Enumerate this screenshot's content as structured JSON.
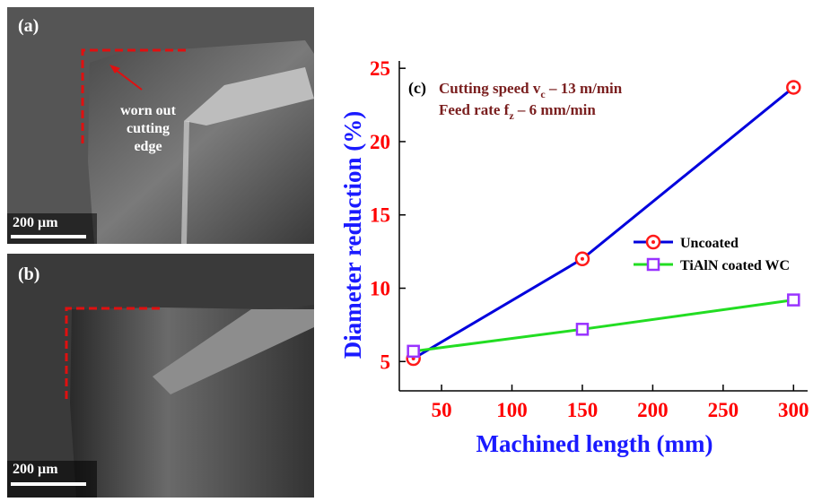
{
  "panels": [
    {
      "label": "(a)",
      "scale_bar": "200 µm",
      "annotation": [
        "worn out",
        "cutting",
        "edge"
      ]
    },
    {
      "label": "(b)",
      "scale_bar": "200 µm"
    }
  ],
  "chart_data": {
    "type": "line",
    "panel_label": "(c)",
    "annotation": [
      {
        "text": "Cutting speed v",
        "sub": "c",
        "rest": " – 13 m/min"
      },
      {
        "text": "Feed rate f",
        "sub": "z",
        "rest": " – 6 mm/min"
      }
    ],
    "x_label": "Machined length (mm)",
    "y_label": "Diameter reduction (%)",
    "x": [
      30,
      150,
      300
    ],
    "series": [
      {
        "name": "Uncoated",
        "color": "#0000dd",
        "marker_color": "#ff1a1a",
        "marker": "circle",
        "values": [
          5.2,
          12.0,
          23.7
        ]
      },
      {
        "name": "TiAlN coated WC",
        "color": "#22dd22",
        "marker_color": "#9933ff",
        "marker": "square",
        "values": [
          5.7,
          7.2,
          9.2
        ]
      }
    ],
    "xlim": [
      20,
      310
    ],
    "xticks": [
      50,
      100,
      150,
      200,
      250,
      300
    ],
    "ylim": [
      3,
      25.5
    ],
    "yticks": [
      5,
      10,
      15,
      20,
      25
    ],
    "tick_color": "#ff0000",
    "axis_label_color": "#1a1aff",
    "annotation_color": "#7a1f1f",
    "legend": "right"
  }
}
